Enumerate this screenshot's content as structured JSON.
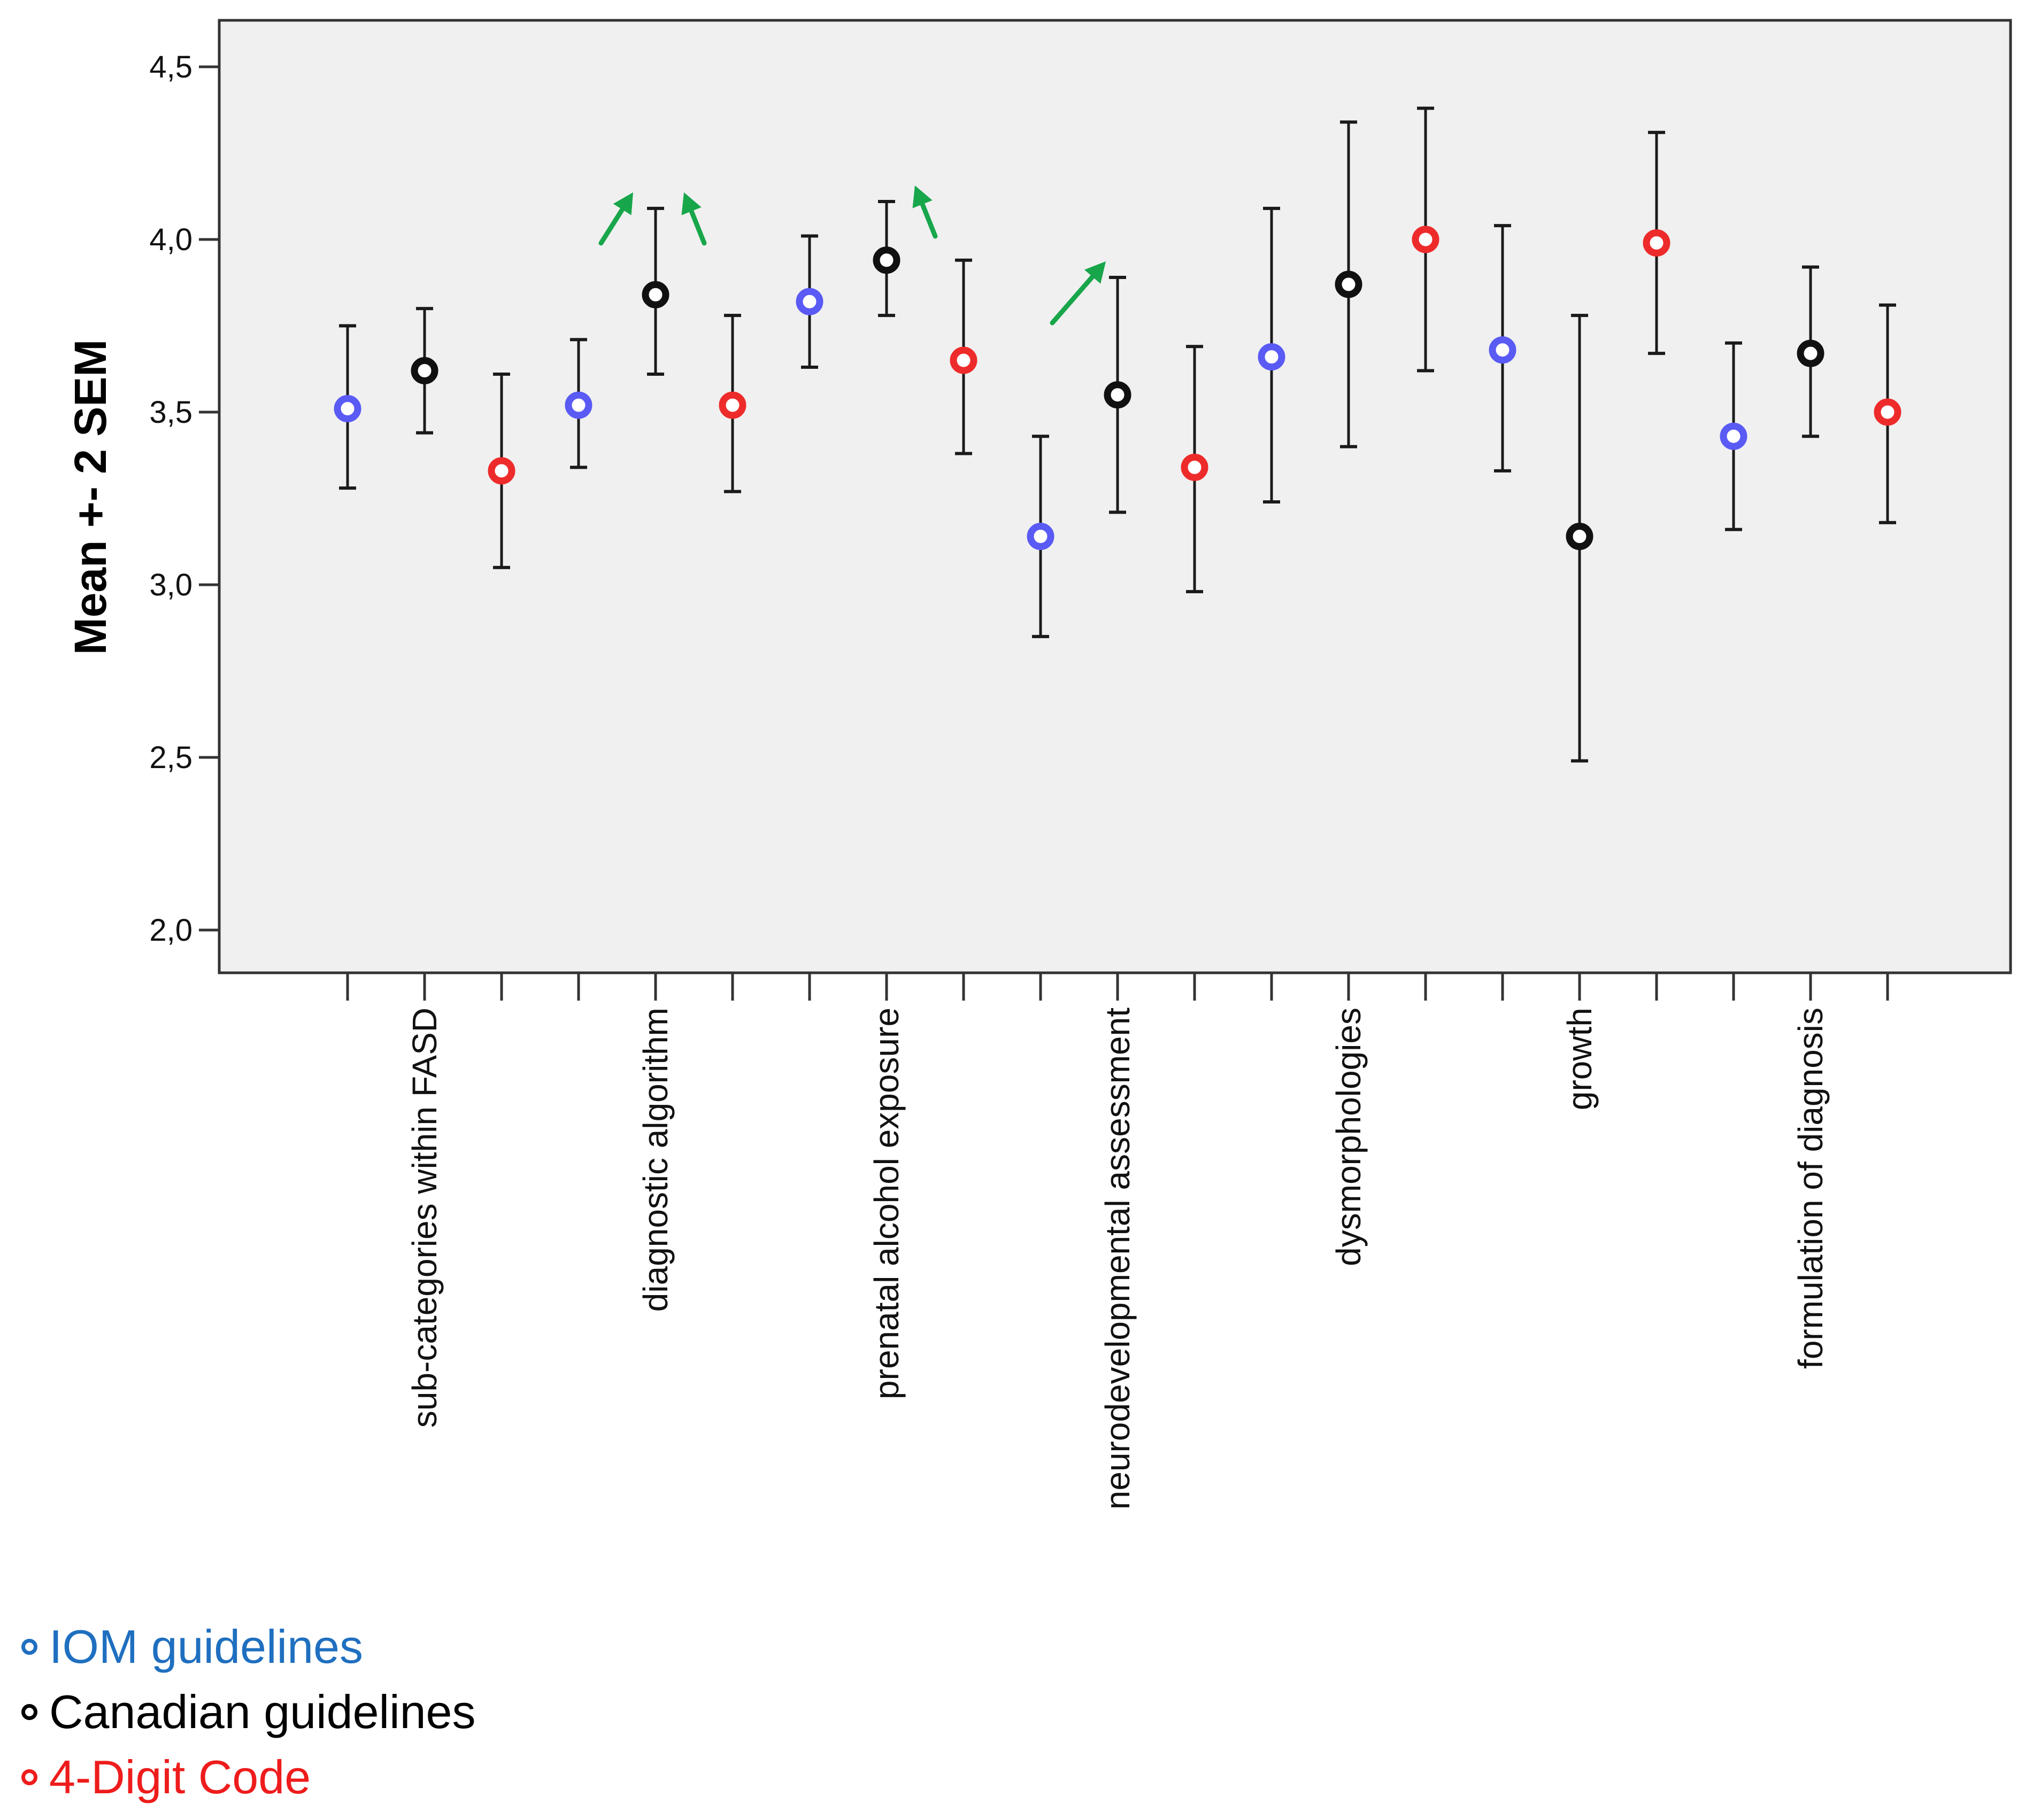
{
  "chart_data": {
    "type": "scatter",
    "title": "",
    "xlabel": "",
    "ylabel": "Mean +- 2 SEM",
    "ylim": [
      2.0,
      4.6
    ],
    "yticks": [
      {
        "value": 2.0,
        "label": "2,0"
      },
      {
        "value": 2.5,
        "label": "2,5"
      },
      {
        "value": 3.0,
        "label": "3,0"
      },
      {
        "value": 3.5,
        "label": "3,5"
      },
      {
        "value": 4.0,
        "label": "4,0"
      },
      {
        "value": 4.5,
        "label": "4,5"
      }
    ],
    "grid": false,
    "legend_position": "bottom-left",
    "categories": [
      "sub-categories within FASD",
      "diagnostic algorithm",
      "prenatal alcohol exposure",
      "neurodevelopmental assessment",
      "dysmorphologies",
      "growth",
      "formulation of diagnosis"
    ],
    "series": [
      {
        "name": "IOM guidelines",
        "color": "#5a5af5",
        "mean": [
          3.51,
          3.52,
          3.82,
          3.14,
          3.66,
          3.68,
          3.43
        ],
        "lower": [
          3.28,
          3.34,
          3.63,
          2.85,
          3.24,
          3.33,
          3.16
        ],
        "upper": [
          3.75,
          3.71,
          4.01,
          3.43,
          4.09,
          4.04,
          3.7
        ]
      },
      {
        "name": "Canadian guidelines",
        "color": "#111111",
        "mean": [
          3.62,
          3.84,
          3.94,
          3.55,
          3.87,
          3.14,
          3.67
        ],
        "lower": [
          3.44,
          3.61,
          3.78,
          3.21,
          3.4,
          2.49,
          3.43
        ],
        "upper": [
          3.8,
          4.09,
          4.11,
          3.89,
          4.34,
          3.78,
          3.92
        ]
      },
      {
        "name": "4-Digit Code",
        "color": "#ee2b2b",
        "mean": [
          3.33,
          3.52,
          3.65,
          3.34,
          4.0,
          3.99,
          3.5
        ],
        "lower": [
          3.05,
          3.27,
          3.38,
          2.98,
          3.62,
          3.67,
          3.18
        ],
        "upper": [
          3.61,
          3.78,
          3.94,
          3.69,
          4.38,
          4.31,
          3.81
        ]
      }
    ],
    "annotations": [
      {
        "type": "arrow",
        "color": "#18a64b",
        "category": "diagnostic algorithm",
        "between": [
          "IOM guidelines",
          "Canadian guidelines"
        ],
        "direction": "up-right"
      },
      {
        "type": "arrow",
        "color": "#18a64b",
        "category": "diagnostic algorithm",
        "between": [
          "Canadian guidelines",
          "4-Digit Code"
        ],
        "direction": "up-left"
      },
      {
        "type": "arrow",
        "color": "#18a64b",
        "category": "prenatal alcohol exposure",
        "between": [
          "Canadian guidelines",
          "4-Digit Code"
        ],
        "direction": "up-left"
      },
      {
        "type": "arrow",
        "color": "#18a64b",
        "category": "neurodevelopmental assessment",
        "between": [
          "IOM guidelines",
          "Canadian guidelines"
        ],
        "direction": "up-right"
      }
    ]
  },
  "legend": {
    "items": [
      {
        "label": "IOM guidelines",
        "color": "#1f6fc0"
      },
      {
        "label": "Canadian guidelines",
        "color": "#000000"
      },
      {
        "label": "4-Digit Code",
        "color": "#ee1c1c"
      }
    ]
  }
}
